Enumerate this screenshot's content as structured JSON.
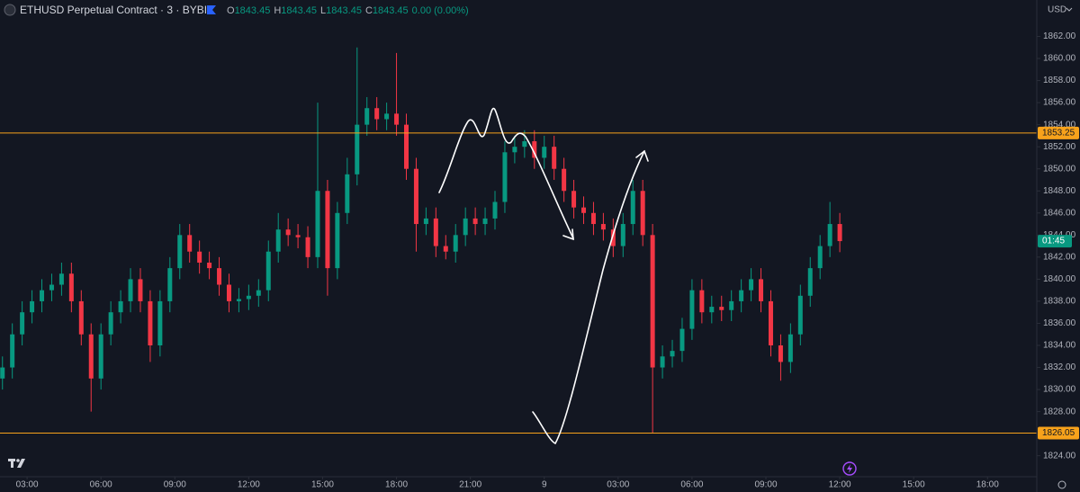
{
  "chart_data": {
    "type": "candlestick",
    "title": "ETHUSD Perpetual Contract · 3 · BYBIT",
    "ohlc_legend": [
      {
        "label": "O",
        "value": 1843.45
      },
      {
        "label": "H",
        "value": 1843.45
      },
      {
        "label": "L",
        "value": 1843.45
      },
      {
        "label": "C",
        "value": 1843.45
      }
    ],
    "change": "0.00 (0.00%)",
    "currency": "USD",
    "x": [
      2,
      2.4,
      2.8,
      3.2,
      3.6,
      4,
      4.4,
      4.8,
      5.2,
      5.6,
      6,
      6.4,
      6.8,
      7.2,
      7.6,
      8,
      8.4,
      8.8,
      9.2,
      9.6,
      10,
      10.4,
      10.8,
      11.2,
      11.6,
      12,
      12.4,
      12.8,
      13.2,
      13.6,
      14,
      14.4,
      14.8,
      15.2,
      15.6,
      16,
      16.4,
      16.8,
      17.2,
      17.6,
      18,
      18.4,
      18.8,
      19.2,
      19.6,
      20,
      20.4,
      20.8,
      21.2,
      21.6,
      22,
      22.4,
      22.8,
      23.2,
      23.6,
      24,
      24.4,
      24.8,
      25.2,
      25.6,
      26,
      26.4,
      26.8,
      27.2,
      27.6,
      28,
      28.4,
      28.8,
      29.2,
      29.6,
      30,
      30.4,
      30.8,
      31.2,
      31.6,
      32,
      32.4,
      32.8,
      33.2,
      33.6,
      34,
      34.4,
      34.8,
      35.2,
      35.6,
      36
    ],
    "open": [
      1831,
      1832,
      1835,
      1837,
      1838,
      1839,
      1839.5,
      1840.5,
      1838,
      1835,
      1831,
      1835,
      1837,
      1838,
      1840,
      1838,
      1834,
      1838,
      1841,
      1844,
      1842.5,
      1841.5,
      1841,
      1839.5,
      1838,
      1838.2,
      1838.5,
      1839,
      1842.5,
      1844.5,
      1844,
      1843.8,
      1842,
      1848,
      1841,
      1846,
      1849.5,
      1854,
      1855.5,
      1854.5,
      1855,
      1854,
      1850,
      1845,
      1845.5,
      1843,
      1842.5,
      1844,
      1845.5,
      1845,
      1845.5,
      1847,
      1851.5,
      1852,
      1852.5,
      1851,
      1852,
      1850,
      1848,
      1846.5,
      1846,
      1845,
      1844.5,
      1843,
      1845,
      1848,
      1844,
      1832,
      1833,
      1833.5,
      1835.5,
      1839,
      1837,
      1837.5,
      1837.2,
      1838,
      1839,
      1840,
      1838,
      1834,
      1832.5,
      1835,
      1838.5,
      1841,
      1843,
      1845
    ],
    "high": [
      1833,
      1836,
      1838,
      1839,
      1840,
      1840.5,
      1841.5,
      1841.5,
      1839,
      1836,
      1836,
      1838,
      1839,
      1841,
      1841,
      1839,
      1839,
      1842,
      1845,
      1845,
      1843.5,
      1842.5,
      1842,
      1840.5,
      1839.2,
      1839.5,
      1840,
      1843.5,
      1846,
      1845.5,
      1845,
      1844.8,
      1856,
      1849,
      1847,
      1851,
      1861,
      1856.5,
      1856.5,
      1856,
      1860.5,
      1855,
      1851,
      1846.5,
      1846.5,
      1844,
      1845,
      1846.5,
      1846.5,
      1846.5,
      1848,
      1852.5,
      1853,
      1853.5,
      1853.5,
      1853,
      1853,
      1851,
      1849,
      1847.5,
      1847,
      1846,
      1845.5,
      1846,
      1849,
      1849,
      1845,
      1834,
      1834.5,
      1836.5,
      1840,
      1840,
      1838.5,
      1838.5,
      1839,
      1840,
      1841,
      1841,
      1839,
      1835,
      1836,
      1839.5,
      1842,
      1844,
      1847,
      1846
    ],
    "low": [
      1830,
      1831,
      1834,
      1836,
      1837,
      1838,
      1838.5,
      1837,
      1834,
      1828,
      1830,
      1834,
      1836,
      1837,
      1837,
      1832.5,
      1833,
      1837,
      1840,
      1841.5,
      1840.5,
      1840,
      1838.5,
      1837,
      1837,
      1837.2,
      1837.5,
      1838,
      1841.5,
      1843,
      1842.8,
      1841,
      1841,
      1838.5,
      1840,
      1845,
      1848.5,
      1853,
      1853.5,
      1853.5,
      1853,
      1849,
      1842.5,
      1844,
      1842,
      1841.8,
      1841.5,
      1843,
      1844,
      1844,
      1844.5,
      1846,
      1850.5,
      1851,
      1850,
      1850,
      1849,
      1847,
      1845.5,
      1845,
      1844,
      1843.5,
      1842,
      1842,
      1844,
      1843,
      1826.05,
      1831,
      1832,
      1832.5,
      1834.5,
      1836,
      1836,
      1836.2,
      1836.2,
      1837,
      1838,
      1837,
      1833,
      1830.8,
      1831.5,
      1834,
      1837.5,
      1840,
      1842,
      1842.45
    ],
    "close": [
      1832,
      1835,
      1837,
      1838,
      1839,
      1839.5,
      1840.5,
      1838,
      1835,
      1831,
      1835,
      1837,
      1838,
      1840,
      1838,
      1834,
      1838,
      1841,
      1844,
      1842.5,
      1841.5,
      1841,
      1839.5,
      1838,
      1838.2,
      1838.5,
      1839,
      1842.5,
      1844.5,
      1844,
      1843.8,
      1842,
      1848,
      1841,
      1846,
      1849.5,
      1854,
      1855.5,
      1854.5,
      1855,
      1854,
      1850,
      1845,
      1845.5,
      1843,
      1842.5,
      1844,
      1845.5,
      1845,
      1845.5,
      1847,
      1851.5,
      1852,
      1852.5,
      1851,
      1852,
      1850,
      1848,
      1846.5,
      1846,
      1845,
      1844.5,
      1843,
      1845,
      1848,
      1844,
      1832,
      1833,
      1833.5,
      1835.5,
      1839,
      1837,
      1837.5,
      1837.2,
      1838,
      1839,
      1840,
      1838,
      1834,
      1832.5,
      1835,
      1838.5,
      1841,
      1843,
      1845,
      1843.45
    ],
    "up_color": "#089981",
    "down_color": "#f23645",
    "xlim": [
      1.9,
      44
    ],
    "xticks": [
      {
        "value": 3,
        "label": "03:00"
      },
      {
        "value": 6,
        "label": "06:00"
      },
      {
        "value": 9,
        "label": "09:00"
      },
      {
        "value": 12,
        "label": "12:00"
      },
      {
        "value": 15,
        "label": "15:00"
      },
      {
        "value": 18,
        "label": "18:00"
      },
      {
        "value": 21,
        "label": "21:00"
      },
      {
        "value": 24,
        "label": "9"
      },
      {
        "value": 27,
        "label": "03:00"
      },
      {
        "value": 30,
        "label": "06:00"
      },
      {
        "value": 33,
        "label": "09:00"
      },
      {
        "value": 36,
        "label": "12:00"
      },
      {
        "value": 39,
        "label": "15:00"
      },
      {
        "value": 42,
        "label": "18:00"
      }
    ],
    "ylim": [
      1822.1,
      1865.3
    ],
    "yticks": [
      {
        "value": 1824,
        "label": "1824.00"
      },
      {
        "value": 1826,
        "label": "1826.00"
      },
      {
        "value": 1828,
        "label": "1828.00"
      },
      {
        "value": 1830,
        "label": "1830.00"
      },
      {
        "value": 1832,
        "label": "1832.00"
      },
      {
        "value": 1834,
        "label": "1834.00"
      },
      {
        "value": 1836,
        "label": "1836.00"
      },
      {
        "value": 1838,
        "label": "1838.00"
      },
      {
        "value": 1840,
        "label": "1840.00"
      },
      {
        "value": 1842,
        "label": "1842.00"
      },
      {
        "value": 1844,
        "label": "1844.00"
      },
      {
        "value": 1846,
        "label": "1846.00"
      },
      {
        "value": 1848,
        "label": "1848.00"
      },
      {
        "value": 1850,
        "label": "1850.00"
      },
      {
        "value": 1852,
        "label": "1852.00"
      },
      {
        "value": 1854,
        "label": "1854.00"
      },
      {
        "value": 1856,
        "label": "1856.00"
      },
      {
        "value": 1858,
        "label": "1858.00"
      },
      {
        "value": 1860,
        "label": "1860.00"
      },
      {
        "value": 1862,
        "label": "1862.00"
      }
    ],
    "grid": false,
    "levels": [
      1853.25,
      1826.05
    ],
    "level_color": "#f7a21b",
    "last_price": 1843.45,
    "countdown": "01:45"
  }
}
